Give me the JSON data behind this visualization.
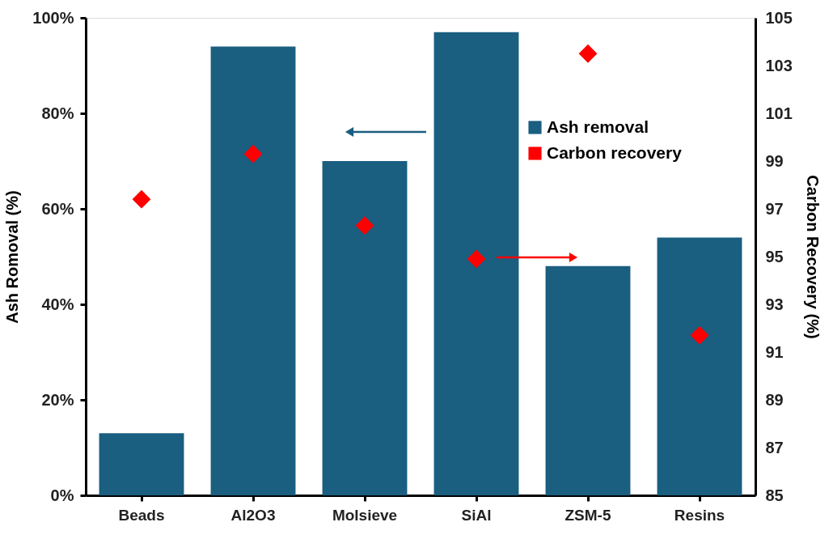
{
  "chart_data": {
    "type": "bar",
    "categories": [
      "Beads",
      "Al2O3",
      "Molsieve",
      "SiAl",
      "ZSM-5",
      "Resins"
    ],
    "ylabel": "Ash Romoval (%)",
    "y2label": "Carbon Recovery (%)",
    "series": [
      {
        "name": "Ash removal",
        "color": "#1a5e80",
        "values": [
          13,
          94,
          70,
          97,
          48,
          54
        ]
      },
      {
        "name": "Carbon recovery",
        "type": "scatter",
        "axis": "y2",
        "color": "#ff0000",
        "marker": "diamond",
        "values": [
          97.4,
          99.3,
          96.3,
          94.9,
          103.5,
          91.7
        ]
      }
    ],
    "ylim": [
      0,
      100
    ],
    "yticks": [
      {
        "value": 0,
        "label": "0%"
      },
      {
        "value": 20,
        "label": "20%"
      },
      {
        "value": 40,
        "label": "40%"
      },
      {
        "value": 60,
        "label": "60%"
      },
      {
        "value": 80,
        "label": "80%"
      },
      {
        "value": 100,
        "label": "100%"
      }
    ],
    "y2lim": [
      85,
      105
    ],
    "y2ticks": [
      85,
      87,
      89,
      91,
      93,
      95,
      97,
      99,
      101,
      103,
      105
    ],
    "grid": false,
    "legend": "top right"
  }
}
